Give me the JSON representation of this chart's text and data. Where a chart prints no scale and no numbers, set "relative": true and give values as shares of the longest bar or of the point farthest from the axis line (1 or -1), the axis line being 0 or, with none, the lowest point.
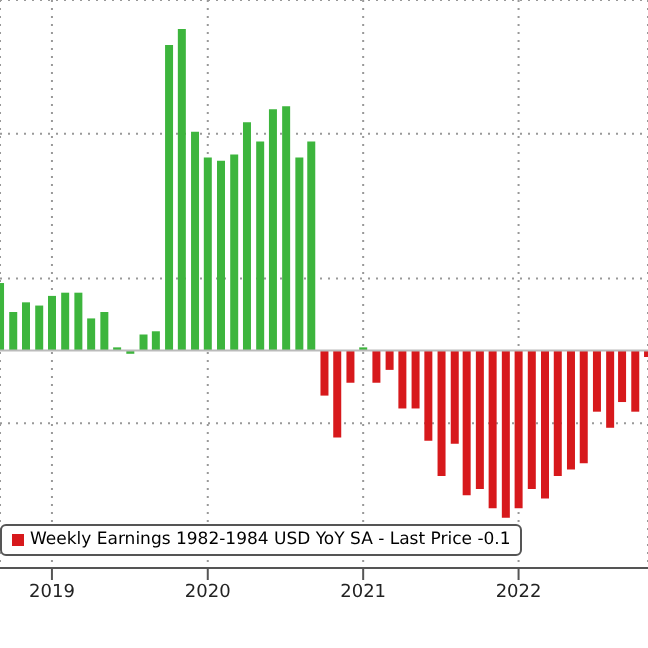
{
  "chart_data": {
    "type": "bar",
    "relative": true,
    "x": [
      "2019-03",
      "2019-04",
      "2019-05",
      "2019-06",
      "2019-07",
      "2019-08",
      "2019-09",
      "2019-10",
      "2019-11",
      "2019-12",
      "2020-01",
      "2020-02",
      "2020-03",
      "2020-04",
      "2020-05",
      "2020-06",
      "2020-07",
      "2020-08",
      "2020-09",
      "2020-10",
      "2020-11",
      "2020-12",
      "2021-01",
      "2021-02",
      "2021-03",
      "2021-04",
      "2021-05",
      "2021-06",
      "2021-07",
      "2021-08",
      "2021-09",
      "2021-10",
      "2021-11",
      "2021-12",
      "2022-01",
      "2022-02",
      "2022-03",
      "2022-04",
      "2022-05",
      "2022-06",
      "2022-07",
      "2022-08",
      "2022-09",
      "2022-10",
      "2022-11",
      "2022-12",
      "2023-01",
      "2023-02",
      "2023-03",
      "2023-04",
      "2023-05"
    ],
    "xlim": [
      "2019-03-01",
      "2023-05-01"
    ],
    "xticks": [
      {
        "value": "2019-07-01",
        "label": "2019"
      },
      {
        "value": "2020-07-01",
        "label": "2020"
      },
      {
        "value": "2021-07-01",
        "label": "2021"
      },
      {
        "value": "2022-07-01",
        "label": "2022"
      }
    ],
    "series": [
      {
        "name": "Weekly Earnings 1982-1984 USD YoY SA - Last Price -0.1",
        "color": "#d7191c",
        "values": [
          0.21,
          0.12,
          0.15,
          0.14,
          0.17,
          0.18,
          0.18,
          0.1,
          0.12,
          0.01,
          -0.01,
          0.05,
          0.06,
          0.95,
          1,
          0.68,
          0.6,
          0.59,
          0.61,
          0.71,
          0.65,
          0.75,
          0.76,
          0.6,
          0.65,
          -0.14,
          -0.27,
          -0.1,
          0.01,
          -0.1,
          -0.06,
          -0.18,
          -0.18,
          -0.28,
          -0.39,
          -0.29,
          -0.45,
          -0.43,
          -0.49,
          -0.52,
          -0.49,
          -0.43,
          -0.46,
          -0.39,
          -0.37,
          -0.35,
          -0.19,
          -0.24,
          -0.16,
          -0.19,
          -0.02
        ],
        "colors": [
          "#3db53d",
          "#3db53d",
          "#3db53d",
          "#3db53d",
          "#3db53d",
          "#3db53d",
          "#3db53d",
          "#3db53d",
          "#3db53d",
          "#3db53d",
          "#3db53d",
          "#3db53d",
          "#3db53d",
          "#3db53d",
          "#3db53d",
          "#3db53d",
          "#3db53d",
          "#3db53d",
          "#3db53d",
          "#3db53d",
          "#3db53d",
          "#3db53d",
          "#3db53d",
          "#3db53d",
          "#3db53d",
          "#d7191c",
          "#d7191c",
          "#d7191c",
          "#3db53d",
          "#d7191c",
          "#d7191c",
          "#d7191c",
          "#d7191c",
          "#d7191c",
          "#d7191c",
          "#d7191c",
          "#d7191c",
          "#d7191c",
          "#d7191c",
          "#d7191c",
          "#d7191c",
          "#d7191c",
          "#d7191c",
          "#d7191c",
          "#d7191c",
          "#d7191c",
          "#d7191c",
          "#d7191c",
          "#d7191c",
          "#d7191c",
          "#d7191c"
        ]
      }
    ],
    "grid": true,
    "legend": "bottom left"
  }
}
